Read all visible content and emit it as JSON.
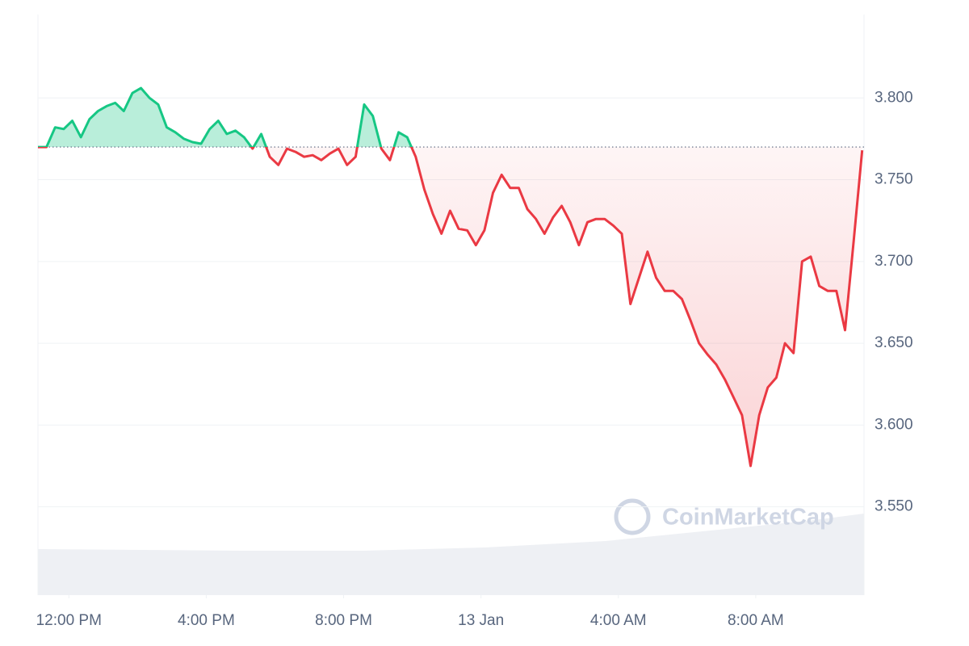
{
  "chart_data": {
    "type": "line",
    "watermark": "CoinMarketCap",
    "x": [
      11.1,
      11.35,
      11.6,
      11.85,
      12.1,
      12.35,
      12.6,
      12.85,
      13.1,
      13.35,
      13.6,
      13.85,
      14.1,
      14.35,
      14.6,
      14.85,
      15.1,
      15.35,
      15.6,
      15.85,
      16.1,
      16.35,
      16.6,
      16.85,
      17.1,
      17.35,
      17.6,
      17.85,
      18.1,
      18.35,
      18.6,
      18.85,
      19.1,
      19.35,
      19.6,
      19.85,
      20.1,
      20.35,
      20.6,
      20.85,
      21.1,
      21.35,
      21.6,
      21.85,
      22.1,
      22.35,
      22.6,
      22.85,
      23.1,
      23.35,
      23.6,
      23.85,
      24.1,
      24.35,
      24.6,
      24.85,
      25.1,
      25.35,
      25.6,
      25.85,
      26.1,
      26.35,
      26.6,
      26.85,
      27.1,
      27.35,
      27.6,
      27.85,
      28.1,
      28.35,
      28.6,
      28.85,
      29.1,
      29.35,
      29.6,
      29.85,
      30.1,
      30.35,
      30.6,
      30.85,
      31.1,
      31.35,
      31.6,
      31.85,
      32.1,
      32.35,
      32.6,
      32.85,
      33.1,
      33.35,
      33.6,
      33.85,
      34.1,
      34.35,
      34.6,
      34.85,
      35.1
    ],
    "values": [
      3.77,
      3.77,
      3.782,
      3.781,
      3.786,
      3.776,
      3.787,
      3.792,
      3.795,
      3.797,
      3.792,
      3.803,
      3.806,
      3.8,
      3.796,
      3.782,
      3.779,
      3.775,
      3.773,
      3.772,
      3.781,
      3.786,
      3.778,
      3.78,
      3.776,
      3.769,
      3.778,
      3.764,
      3.759,
      3.769,
      3.767,
      3.764,
      3.765,
      3.762,
      3.766,
      3.769,
      3.759,
      3.764,
      3.796,
      3.789,
      3.769,
      3.762,
      3.779,
      3.776,
      3.764,
      3.744,
      3.729,
      3.717,
      3.731,
      3.72,
      3.719,
      3.71,
      3.719,
      3.742,
      3.753,
      3.745,
      3.745,
      3.732,
      3.726,
      3.717,
      3.727,
      3.734,
      3.724,
      3.71,
      3.724,
      3.726,
      3.726,
      3.722,
      3.717,
      3.674,
      3.69,
      3.706,
      3.69,
      3.682,
      3.682,
      3.677,
      3.664,
      3.65,
      3.643,
      3.637,
      3.628,
      3.617,
      3.606,
      3.575,
      3.606,
      3.623,
      3.629,
      3.65,
      3.644,
      3.7,
      3.703,
      3.685,
      3.682,
      3.682,
      3.658,
      3.712,
      3.768
    ],
    "reference_value": 3.77,
    "up_color": "#16c784",
    "down_color": "#ea3943",
    "xlim": [
      11.1,
      35.2
    ],
    "xticks": [
      {
        "value": 12,
        "label": "12:00 PM"
      },
      {
        "value": 16,
        "label": "4:00 PM"
      },
      {
        "value": 20,
        "label": "8:00 PM"
      },
      {
        "value": 24,
        "label": "13 Jan"
      },
      {
        "value": 28,
        "label": "4:00 AM"
      },
      {
        "value": 32,
        "label": "8:00 AM"
      }
    ],
    "ylim": [
      3.496,
      3.851
    ],
    "yticks": [
      {
        "value": 3.55,
        "label": "3.550"
      },
      {
        "value": 3.6,
        "label": "3.600"
      },
      {
        "value": 3.65,
        "label": "3.650"
      },
      {
        "value": 3.7,
        "label": "3.700"
      },
      {
        "value": 3.75,
        "label": "3.750"
      },
      {
        "value": 3.8,
        "label": "3.800"
      }
    ],
    "grid": true
  }
}
